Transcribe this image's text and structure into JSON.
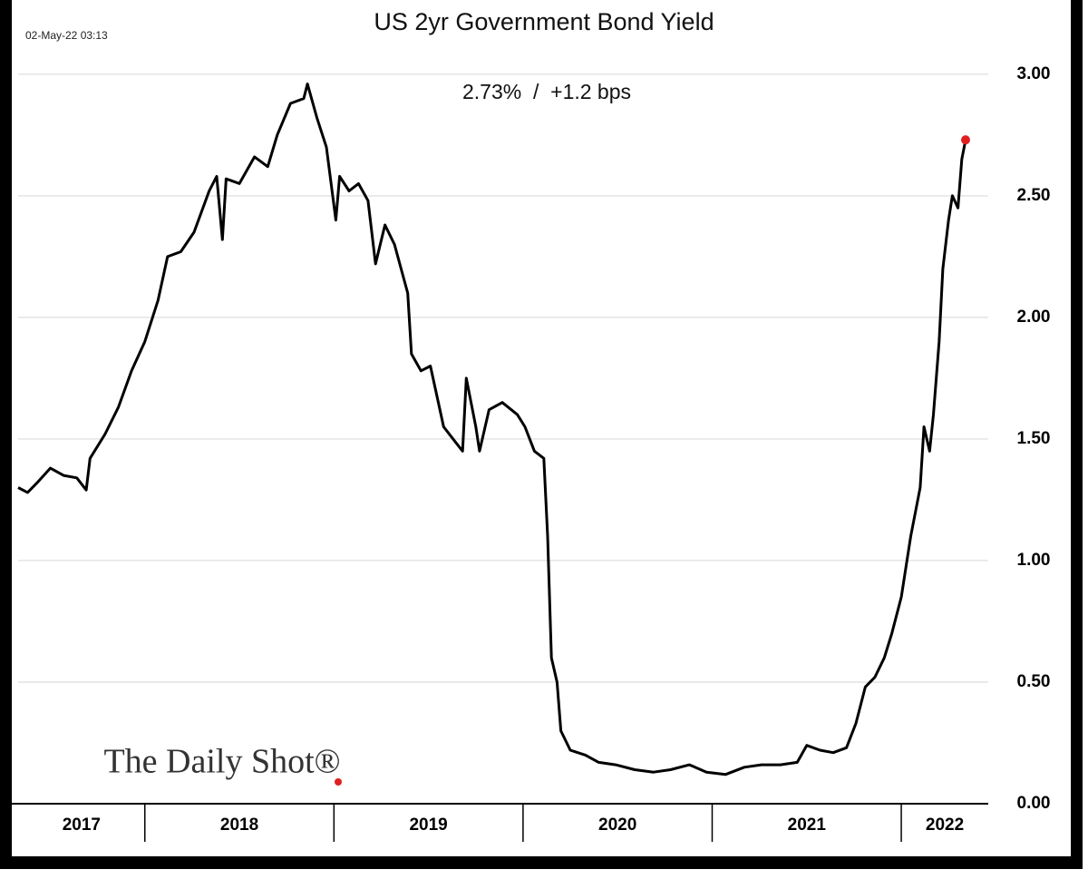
{
  "chart_data": {
    "type": "line",
    "title": "US 2yr Government Bond Yield",
    "timestamp": "02-May-22 03:13",
    "subtitle": "2.73%  /  +1.2 bps",
    "watermark": "The Daily Shot®",
    "x": [
      2017.33,
      2017.38,
      2017.43,
      2017.5,
      2017.57,
      2017.64,
      2017.69,
      2017.71,
      2017.79,
      2017.86,
      2017.93,
      2018.0,
      2018.07,
      2018.12,
      2018.19,
      2018.26,
      2018.34,
      2018.38,
      2018.41,
      2018.43,
      2018.5,
      2018.58,
      2018.65,
      2018.7,
      2018.77,
      2018.84,
      2018.86,
      2018.91,
      2018.96,
      2019.01,
      2019.03,
      2019.08,
      2019.13,
      2019.18,
      2019.22,
      2019.27,
      2019.32,
      2019.39,
      2019.41,
      2019.46,
      2019.51,
      2019.58,
      2019.63,
      2019.68,
      2019.7,
      2019.75,
      2019.77,
      2019.82,
      2019.89,
      2019.97,
      2020.01,
      2020.06,
      2020.11,
      2020.13,
      2020.15,
      2020.18,
      2020.2,
      2020.25,
      2020.33,
      2020.4,
      2020.49,
      2020.59,
      2020.69,
      2020.78,
      2020.88,
      2020.97,
      2021.07,
      2021.17,
      2021.26,
      2021.36,
      2021.45,
      2021.5,
      2021.57,
      2021.64,
      2021.71,
      2021.76,
      2021.81,
      2021.86,
      2021.91,
      2021.95,
      2022.0,
      2022.05,
      2022.1,
      2022.12,
      2022.15,
      2022.17,
      2022.2,
      2022.22,
      2022.25,
      2022.27,
      2022.3,
      2022.32,
      2022.34
    ],
    "series": [
      {
        "color": "#000000",
        "last_marker_color": "#e02020",
        "values": [
          1.3,
          1.28,
          1.32,
          1.38,
          1.35,
          1.34,
          1.29,
          1.42,
          1.52,
          1.63,
          1.78,
          1.9,
          2.07,
          2.25,
          2.27,
          2.35,
          2.52,
          2.58,
          2.32,
          2.57,
          2.55,
          2.66,
          2.62,
          2.75,
          2.88,
          2.9,
          2.96,
          2.82,
          2.7,
          2.4,
          2.58,
          2.52,
          2.55,
          2.48,
          2.22,
          2.38,
          2.3,
          2.1,
          1.85,
          1.78,
          1.8,
          1.55,
          1.5,
          1.45,
          1.75,
          1.55,
          1.45,
          1.62,
          1.65,
          1.6,
          1.55,
          1.45,
          1.42,
          1.1,
          0.6,
          0.5,
          0.3,
          0.22,
          0.2,
          0.17,
          0.16,
          0.14,
          0.13,
          0.14,
          0.16,
          0.13,
          0.12,
          0.15,
          0.16,
          0.16,
          0.17,
          0.24,
          0.22,
          0.21,
          0.23,
          0.33,
          0.48,
          0.52,
          0.6,
          0.7,
          0.85,
          1.1,
          1.3,
          1.55,
          1.45,
          1.6,
          1.9,
          2.2,
          2.4,
          2.5,
          2.45,
          2.65,
          2.73
        ]
      }
    ],
    "xlim": [
      2017.33,
      2022.46
    ],
    "xticks": [
      2017,
      2018,
      2019,
      2020,
      2021,
      2022
    ],
    "ylim": [
      0,
      3.1
    ],
    "yticks": [
      {
        "value": 0,
        "label": "0.00"
      },
      {
        "value": 0.5,
        "label": "0.50"
      },
      {
        "value": 1,
        "label": "1.00"
      },
      {
        "value": 1.5,
        "label": "1.50"
      },
      {
        "value": 2,
        "label": "2.00"
      },
      {
        "value": 2.5,
        "label": "2.50"
      },
      {
        "value": 3,
        "label": "3.00"
      }
    ],
    "grid": true
  }
}
